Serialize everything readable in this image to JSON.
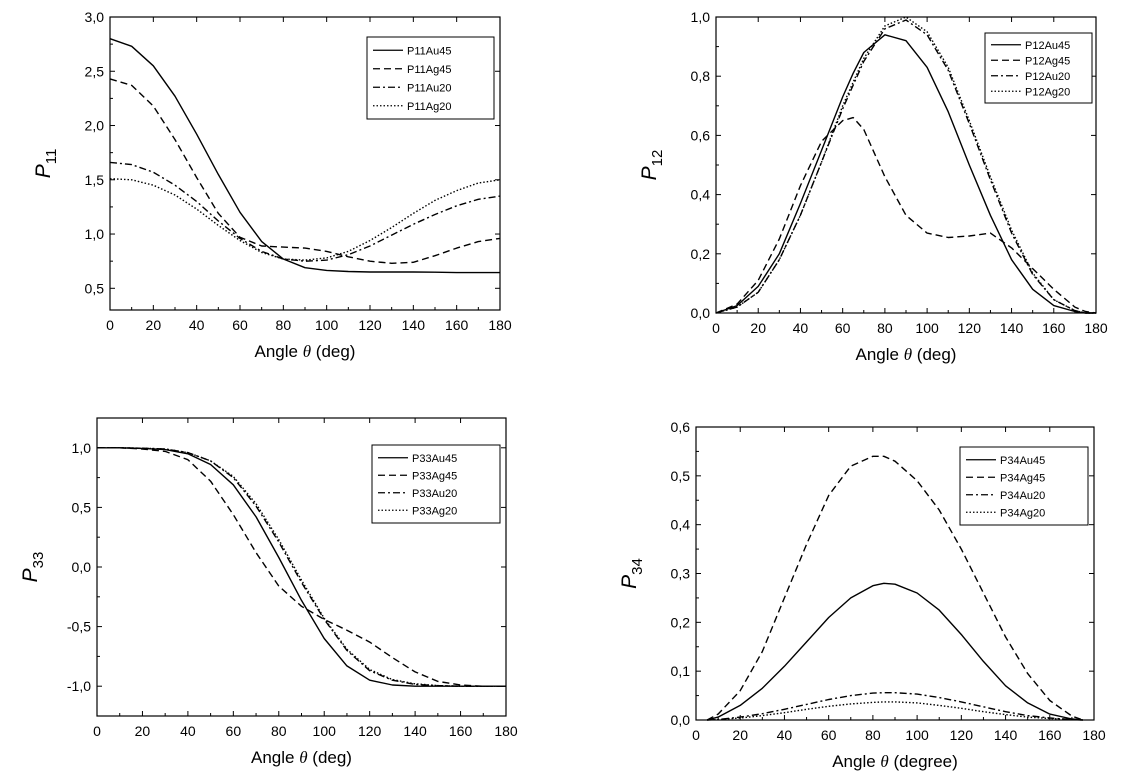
{
  "chart_data": [
    {
      "type": "line",
      "ylabel_main": "P",
      "ylabel_sub": "11",
      "xlabel": "Angle",
      "xlabel_symbol": "θ",
      "xlabel_unit": "(deg)",
      "xlim": [
        0,
        180
      ],
      "ylim": [
        0.3,
        3.0
      ],
      "xticks": [
        0,
        20,
        40,
        60,
        80,
        100,
        120,
        140,
        160,
        180
      ],
      "yticks": [
        "0,5",
        "1,0",
        "1,5",
        "2,0",
        "2,5",
        "3,0"
      ],
      "ytick_values": [
        0.5,
        1.0,
        1.5,
        2.0,
        2.5,
        3.0
      ],
      "grid": false,
      "legend_position": "top-right",
      "x": [
        0,
        10,
        20,
        30,
        40,
        50,
        60,
        70,
        80,
        90,
        100,
        110,
        120,
        130,
        140,
        150,
        160,
        170,
        180
      ],
      "series": [
        {
          "name": "P11Au45",
          "style": "solid",
          "values": [
            2.8,
            2.73,
            2.55,
            2.27,
            1.92,
            1.55,
            1.2,
            0.93,
            0.77,
            0.69,
            0.665,
            0.655,
            0.65,
            0.65,
            0.65,
            0.648,
            0.645,
            0.645,
            0.645
          ]
        },
        {
          "name": "P11Ag45",
          "style": "dash",
          "values": [
            2.43,
            2.37,
            2.18,
            1.87,
            1.52,
            1.19,
            0.97,
            0.89,
            0.88,
            0.87,
            0.84,
            0.79,
            0.75,
            0.73,
            0.74,
            0.8,
            0.87,
            0.93,
            0.96
          ]
        },
        {
          "name": "P11Au20",
          "style": "dashdot",
          "values": [
            1.66,
            1.64,
            1.57,
            1.45,
            1.3,
            1.12,
            0.96,
            0.84,
            0.77,
            0.75,
            0.76,
            0.81,
            0.89,
            0.99,
            1.09,
            1.18,
            1.26,
            1.32,
            1.35
          ]
        },
        {
          "name": "P11Ag20",
          "style": "dot",
          "values": [
            1.51,
            1.5,
            1.45,
            1.36,
            1.23,
            1.08,
            0.94,
            0.83,
            0.77,
            0.76,
            0.78,
            0.84,
            0.94,
            1.06,
            1.19,
            1.31,
            1.4,
            1.47,
            1.5
          ]
        }
      ]
    },
    {
      "type": "line",
      "ylabel_main": "P",
      "ylabel_sub": "12",
      "xlabel": "Angle",
      "xlabel_symbol": "θ",
      "xlabel_unit": "(deg)",
      "xlim": [
        0,
        180
      ],
      "ylim": [
        0.0,
        1.0
      ],
      "xticks": [
        0,
        20,
        40,
        60,
        80,
        100,
        120,
        140,
        160,
        180
      ],
      "yticks": [
        "0,0",
        "0,2",
        "0,4",
        "0,6",
        "0,8",
        "1,0"
      ],
      "ytick_values": [
        0.0,
        0.2,
        0.4,
        0.6,
        0.8,
        1.0
      ],
      "grid": false,
      "legend_position": "top-right",
      "x": [
        0,
        10,
        20,
        30,
        40,
        50,
        60,
        65,
        70,
        80,
        90,
        100,
        110,
        120,
        130,
        140,
        150,
        160,
        170,
        175,
        180
      ],
      "series": [
        {
          "name": "P12Au45",
          "style": "solid",
          "values": [
            0.0,
            0.025,
            0.09,
            0.2,
            0.37,
            0.55,
            0.73,
            0.81,
            0.88,
            0.94,
            0.92,
            0.83,
            0.68,
            0.5,
            0.33,
            0.18,
            0.08,
            0.025,
            0.005,
            0.0,
            0.0
          ]
        },
        {
          "name": "P12Ag45",
          "style": "dash",
          "values": [
            0.0,
            0.03,
            0.11,
            0.25,
            0.43,
            0.58,
            0.65,
            0.66,
            0.62,
            0.46,
            0.33,
            0.27,
            0.255,
            0.26,
            0.27,
            0.22,
            0.15,
            0.08,
            0.02,
            0.005,
            0.0
          ]
        },
        {
          "name": "P12Au20",
          "style": "dashdot",
          "values": [
            0.0,
            0.02,
            0.07,
            0.18,
            0.33,
            0.51,
            0.69,
            0.77,
            0.85,
            0.96,
            0.99,
            0.94,
            0.82,
            0.64,
            0.45,
            0.27,
            0.13,
            0.045,
            0.008,
            0.0,
            0.0
          ]
        },
        {
          "name": "P12Ag20",
          "style": "dot",
          "values": [
            0.0,
            0.02,
            0.07,
            0.18,
            0.33,
            0.51,
            0.7,
            0.78,
            0.86,
            0.97,
            1.0,
            0.95,
            0.83,
            0.65,
            0.46,
            0.28,
            0.135,
            0.045,
            0.008,
            0.0,
            0.0
          ]
        }
      ]
    },
    {
      "type": "line",
      "ylabel_main": "P",
      "ylabel_sub": "33",
      "xlabel": "Angle",
      "xlabel_symbol": "θ",
      "xlabel_unit": "(deg)",
      "xlim": [
        0,
        180
      ],
      "ylim": [
        -1.25,
        1.25
      ],
      "xticks": [
        0,
        20,
        40,
        60,
        80,
        100,
        120,
        140,
        160,
        180
      ],
      "yticks": [
        "-1,0",
        "-0,5",
        "0,0",
        "0,5",
        "1,0"
      ],
      "ytick_values": [
        -1.0,
        -0.5,
        0.0,
        0.5,
        1.0
      ],
      "grid": false,
      "legend_position": "top-right",
      "x": [
        0,
        10,
        20,
        30,
        40,
        50,
        60,
        70,
        80,
        90,
        100,
        110,
        120,
        130,
        140,
        150,
        160,
        170,
        180
      ],
      "series": [
        {
          "name": "P33Au45",
          "style": "solid",
          "values": [
            1.0,
            1.0,
            0.995,
            0.985,
            0.95,
            0.86,
            0.69,
            0.42,
            0.08,
            -0.28,
            -0.6,
            -0.83,
            -0.95,
            -0.99,
            -1.0,
            -1.0,
            -1.0,
            -1.0,
            -1.0
          ]
        },
        {
          "name": "P33Ag45",
          "style": "dash",
          "values": [
            1.0,
            1.0,
            0.99,
            0.97,
            0.9,
            0.72,
            0.44,
            0.12,
            -0.16,
            -0.33,
            -0.44,
            -0.53,
            -0.63,
            -0.76,
            -0.88,
            -0.96,
            -0.99,
            -1.0,
            -1.0
          ]
        },
        {
          "name": "P33Au20",
          "style": "dashdot",
          "values": [
            1.0,
            1.0,
            0.997,
            0.99,
            0.96,
            0.89,
            0.75,
            0.51,
            0.21,
            -0.13,
            -0.44,
            -0.7,
            -0.87,
            -0.95,
            -0.985,
            -0.995,
            -1.0,
            -1.0,
            -1.0
          ]
        },
        {
          "name": "P33Ag20",
          "style": "dot",
          "values": [
            1.0,
            1.0,
            0.997,
            0.99,
            0.96,
            0.89,
            0.76,
            0.53,
            0.23,
            -0.11,
            -0.43,
            -0.69,
            -0.86,
            -0.945,
            -0.98,
            -0.995,
            -1.0,
            -1.0,
            -1.0
          ]
        }
      ]
    },
    {
      "type": "line",
      "ylabel_main": "P",
      "ylabel_sub": "34",
      "xlabel": "Angle",
      "xlabel_symbol": "θ",
      "xlabel_unit": "(degree)",
      "xlim": [
        0,
        180
      ],
      "ylim": [
        0.0,
        0.6
      ],
      "xticks": [
        0,
        20,
        40,
        60,
        80,
        100,
        120,
        140,
        160,
        180
      ],
      "yticks": [
        "0,0",
        "0,1",
        "0,2",
        "0,3",
        "0,4",
        "0,5",
        "0,6"
      ],
      "ytick_values": [
        0.0,
        0.1,
        0.2,
        0.3,
        0.4,
        0.5,
        0.6
      ],
      "grid": false,
      "legend_position": "top-right",
      "x": [
        5,
        10,
        20,
        30,
        40,
        50,
        60,
        70,
        80,
        85,
        90,
        100,
        110,
        120,
        130,
        140,
        150,
        160,
        170,
        175
      ],
      "series": [
        {
          "name": "P34Au45",
          "style": "solid",
          "values": [
            0.0,
            0.006,
            0.03,
            0.065,
            0.11,
            0.16,
            0.21,
            0.25,
            0.275,
            0.28,
            0.278,
            0.26,
            0.225,
            0.175,
            0.12,
            0.07,
            0.035,
            0.012,
            0.002,
            0.0
          ]
        },
        {
          "name": "P34Ag45",
          "style": "dash",
          "values": [
            0.0,
            0.012,
            0.06,
            0.14,
            0.25,
            0.36,
            0.46,
            0.52,
            0.54,
            0.54,
            0.53,
            0.49,
            0.43,
            0.35,
            0.26,
            0.17,
            0.095,
            0.04,
            0.008,
            0.0
          ]
        },
        {
          "name": "P34Au20",
          "style": "dashdot",
          "values": [
            0.0,
            0.001,
            0.006,
            0.013,
            0.022,
            0.032,
            0.042,
            0.05,
            0.055,
            0.056,
            0.056,
            0.053,
            0.046,
            0.037,
            0.027,
            0.017,
            0.009,
            0.004,
            0.001,
            0.0
          ]
        },
        {
          "name": "P34Ag20",
          "style": "dot",
          "values": [
            0.0,
            0.001,
            0.004,
            0.009,
            0.015,
            0.022,
            0.028,
            0.033,
            0.036,
            0.037,
            0.037,
            0.035,
            0.03,
            0.024,
            0.017,
            0.011,
            0.006,
            0.003,
            0.001,
            0.0
          ]
        }
      ]
    }
  ]
}
